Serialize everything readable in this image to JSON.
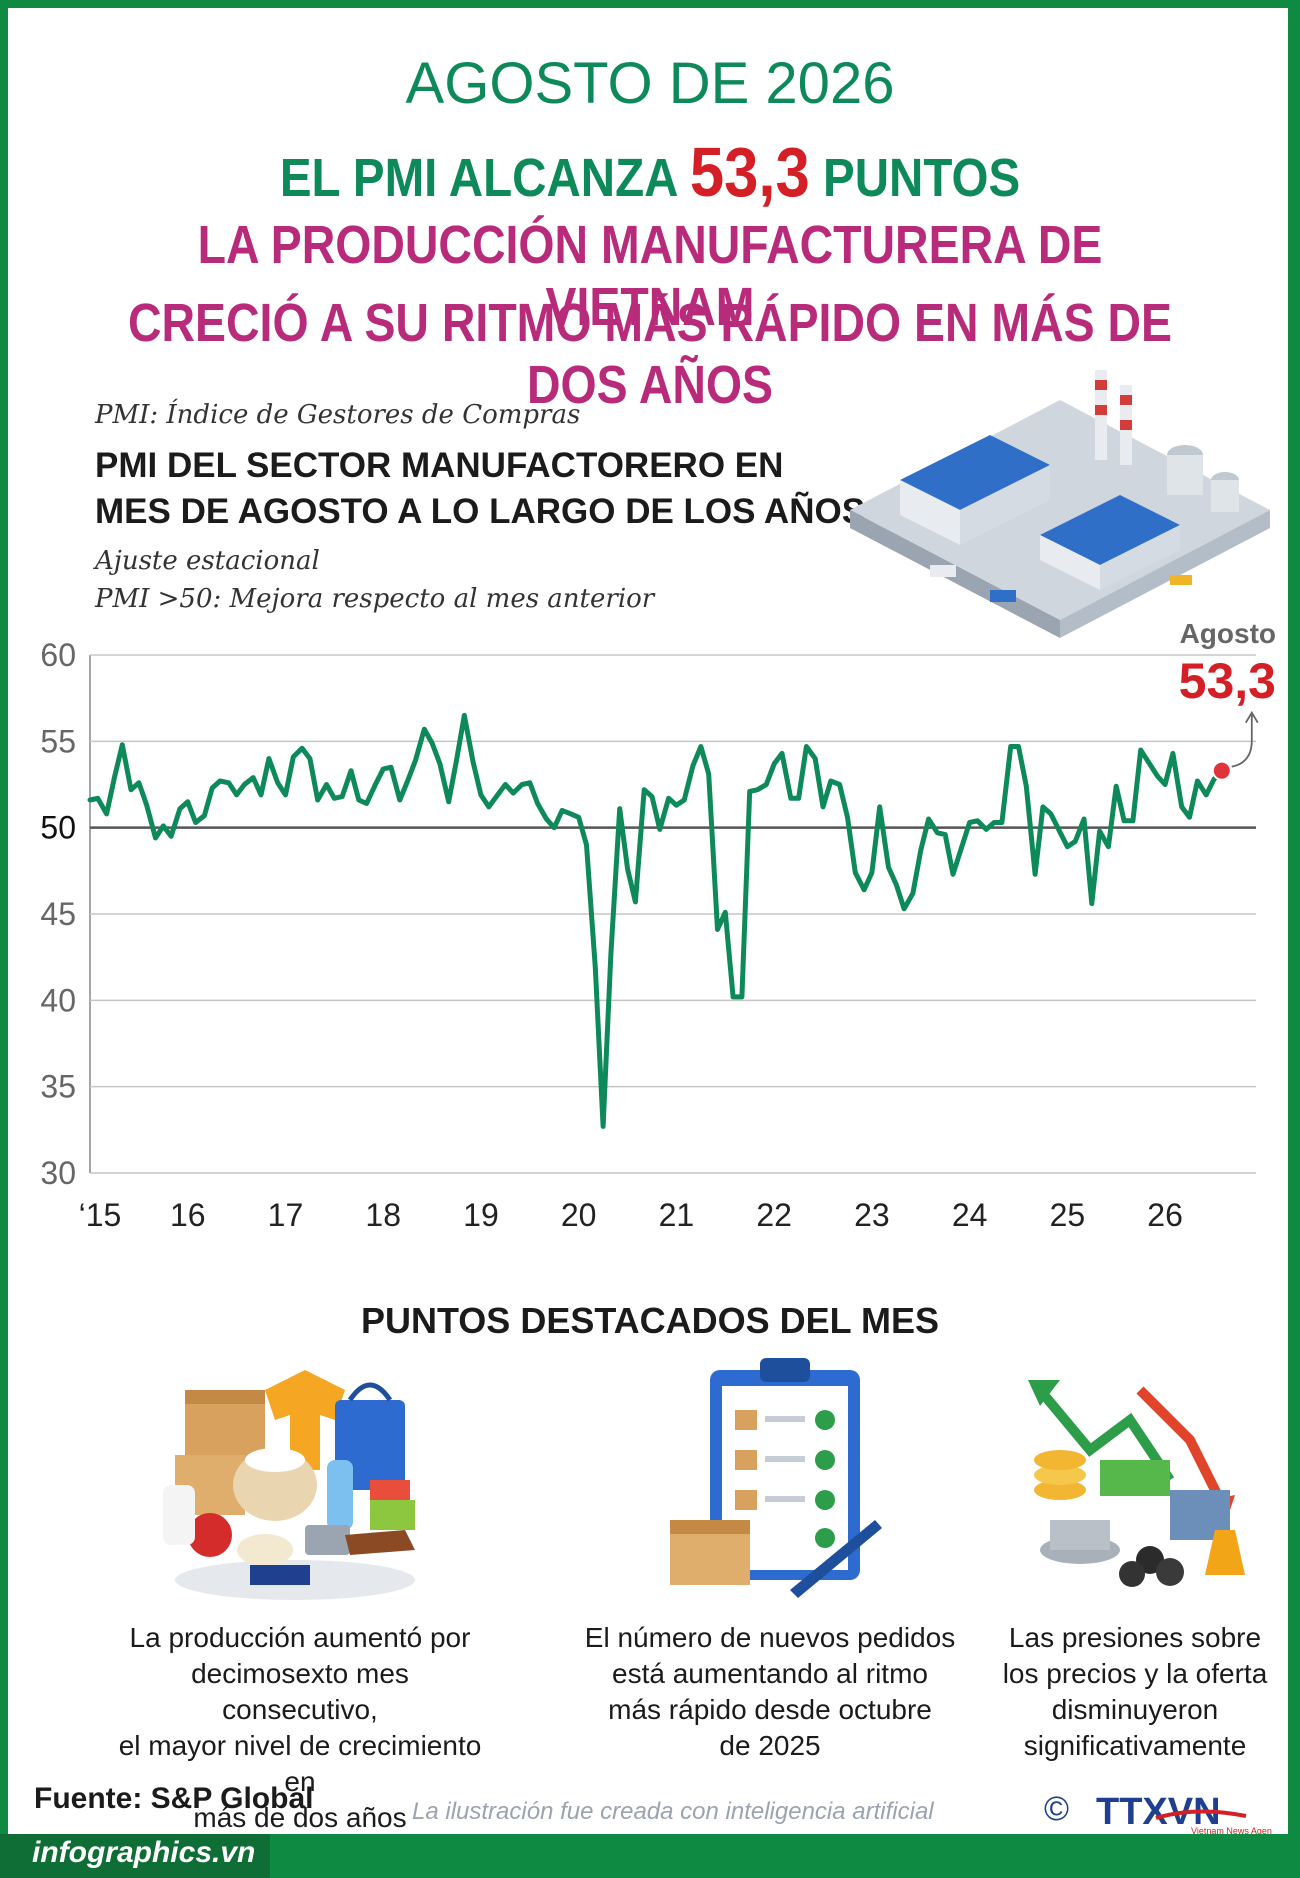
{
  "header": {
    "date_title": "AGOSTO DE 2026",
    "headline_pre": "EL PMI ALCANZA ",
    "headline_value": "53,3",
    "headline_post": " PUNTOS",
    "headline_line2": "LA PRODUCCIÓN MANUFACTURERA DE VIETNAM",
    "headline_line3": "CRECIÓ A SU RITMO MÁS RÁPIDO EN MÁS DE DOS AÑOS"
  },
  "notes": {
    "pmi_definition": "PMI: Índice de Gestores de Compras",
    "subtitle_line1": "PMI DEL SECTOR MANUFACTORERO EN",
    "subtitle_line2": "MES DE AGOSTO A LO LARGO DE LOS AÑOS",
    "seasonal": "Ajuste estacional",
    "improvement": "PMI >50: Mejora respecto al mes anterior"
  },
  "chart_data": {
    "type": "line",
    "y_ticks": [
      "60",
      "55",
      "50",
      "45",
      "40",
      "35",
      "30"
    ],
    "x_ticks": [
      "‘15",
      "16",
      "17",
      "18",
      "19",
      "20",
      "21",
      "22",
      "23",
      "24",
      "25",
      "26"
    ],
    "ylim": [
      30,
      60
    ],
    "grid": true,
    "reference_line": 50,
    "callout_label": "Agosto",
    "callout_value": "53,3",
    "series": [
      {
        "color": "#0e8a5a",
        "points": [
          [
            2015.0,
            51.6
          ],
          [
            2015.08,
            51.7
          ],
          [
            2015.17,
            50.8
          ],
          [
            2015.25,
            52.9
          ],
          [
            2015.33,
            54.8
          ],
          [
            2015.42,
            52.2
          ],
          [
            2015.5,
            52.6
          ],
          [
            2015.58,
            51.3
          ],
          [
            2015.67,
            49.4
          ],
          [
            2015.75,
            50.1
          ],
          [
            2015.83,
            49.5
          ],
          [
            2015.92,
            51.1
          ],
          [
            2016.0,
            51.5
          ],
          [
            2016.08,
            50.3
          ],
          [
            2016.17,
            50.7
          ],
          [
            2016.25,
            52.3
          ],
          [
            2016.33,
            52.7
          ],
          [
            2016.42,
            52.6
          ],
          [
            2016.5,
            51.9
          ],
          [
            2016.58,
            52.5
          ],
          [
            2016.67,
            52.9
          ],
          [
            2016.75,
            51.9
          ],
          [
            2016.83,
            54.0
          ],
          [
            2016.92,
            52.6
          ],
          [
            2017.0,
            51.9
          ],
          [
            2017.08,
            54.1
          ],
          [
            2017.17,
            54.6
          ],
          [
            2017.25,
            54.0
          ],
          [
            2017.33,
            51.6
          ],
          [
            2017.42,
            52.5
          ],
          [
            2017.5,
            51.7
          ],
          [
            2017.58,
            51.8
          ],
          [
            2017.67,
            53.3
          ],
          [
            2017.75,
            51.6
          ],
          [
            2017.83,
            51.4
          ],
          [
            2017.92,
            52.5
          ],
          [
            2018.0,
            53.4
          ],
          [
            2018.08,
            53.5
          ],
          [
            2018.17,
            51.6
          ],
          [
            2018.25,
            52.7
          ],
          [
            2018.33,
            53.9
          ],
          [
            2018.42,
            55.7
          ],
          [
            2018.5,
            54.9
          ],
          [
            2018.58,
            53.7
          ],
          [
            2018.67,
            51.5
          ],
          [
            2018.75,
            53.9
          ],
          [
            2018.83,
            56.5
          ],
          [
            2018.92,
            53.8
          ],
          [
            2019.0,
            51.9
          ],
          [
            2019.08,
            51.2
          ],
          [
            2019.17,
            51.9
          ],
          [
            2019.25,
            52.5
          ],
          [
            2019.33,
            52.0
          ],
          [
            2019.42,
            52.5
          ],
          [
            2019.5,
            52.6
          ],
          [
            2019.58,
            51.4
          ],
          [
            2019.67,
            50.5
          ],
          [
            2019.75,
            50.0
          ],
          [
            2019.83,
            51.0
          ],
          [
            2019.92,
            50.8
          ],
          [
            2020.0,
            50.6
          ],
          [
            2020.08,
            49.0
          ],
          [
            2020.17,
            41.9
          ],
          [
            2020.25,
            32.7
          ],
          [
            2020.33,
            42.7
          ],
          [
            2020.42,
            51.1
          ],
          [
            2020.5,
            47.6
          ],
          [
            2020.58,
            45.7
          ],
          [
            2020.67,
            52.2
          ],
          [
            2020.75,
            51.8
          ],
          [
            2020.83,
            49.9
          ],
          [
            2020.92,
            51.7
          ],
          [
            2021.0,
            51.3
          ],
          [
            2021.08,
            51.6
          ],
          [
            2021.17,
            53.6
          ],
          [
            2021.25,
            54.7
          ],
          [
            2021.33,
            53.1
          ],
          [
            2021.42,
            44.1
          ],
          [
            2021.5,
            45.1
          ],
          [
            2021.58,
            40.2
          ],
          [
            2021.67,
            40.2
          ],
          [
            2021.75,
            52.1
          ],
          [
            2021.83,
            52.2
          ],
          [
            2021.92,
            52.5
          ],
          [
            2022.0,
            53.7
          ],
          [
            2022.08,
            54.3
          ],
          [
            2022.17,
            51.7
          ],
          [
            2022.25,
            51.7
          ],
          [
            2022.33,
            54.7
          ],
          [
            2022.42,
            54.0
          ],
          [
            2022.5,
            51.2
          ],
          [
            2022.58,
            52.7
          ],
          [
            2022.67,
            52.5
          ],
          [
            2022.75,
            50.6
          ],
          [
            2022.83,
            47.4
          ],
          [
            2022.92,
            46.4
          ],
          [
            2023.0,
            47.4
          ],
          [
            2023.08,
            51.2
          ],
          [
            2023.17,
            47.7
          ],
          [
            2023.25,
            46.7
          ],
          [
            2023.33,
            45.3
          ],
          [
            2023.42,
            46.2
          ],
          [
            2023.5,
            48.7
          ],
          [
            2023.58,
            50.5
          ],
          [
            2023.67,
            49.7
          ],
          [
            2023.75,
            49.6
          ],
          [
            2023.83,
            47.3
          ],
          [
            2023.92,
            48.9
          ],
          [
            2024.0,
            50.3
          ],
          [
            2024.08,
            50.4
          ],
          [
            2024.17,
            49.9
          ],
          [
            2024.25,
            50.3
          ],
          [
            2024.33,
            50.3
          ],
          [
            2024.42,
            54.7
          ],
          [
            2024.5,
            54.7
          ],
          [
            2024.58,
            52.4
          ],
          [
            2024.67,
            47.3
          ],
          [
            2024.75,
            51.2
          ],
          [
            2024.83,
            50.8
          ],
          [
            2024.92,
            49.8
          ],
          [
            2025.0,
            48.9
          ],
          [
            2025.08,
            49.2
          ],
          [
            2025.17,
            50.5
          ],
          [
            2025.25,
            45.6
          ],
          [
            2025.33,
            49.8
          ],
          [
            2025.42,
            48.9
          ],
          [
            2025.5,
            52.4
          ],
          [
            2025.58,
            50.4
          ],
          [
            2025.67,
            50.4
          ],
          [
            2025.75,
            54.5
          ],
          [
            2025.83,
            53.8
          ],
          [
            2025.92,
            53.0
          ],
          [
            2026.0,
            52.5
          ],
          [
            2026.08,
            54.3
          ],
          [
            2026.17,
            51.2
          ],
          [
            2026.25,
            50.6
          ],
          [
            2026.33,
            52.7
          ],
          [
            2026.42,
            51.9
          ],
          [
            2026.5,
            52.8
          ],
          [
            2026.58,
            53.3
          ]
        ]
      }
    ]
  },
  "highlights": {
    "title": "PUNTOS DESTACADOS DEL MES",
    "items": [
      {
        "icon": "goods-icon",
        "text_1": "La producción aumentó por",
        "text_2": "decimosexto mes consecutivo,",
        "text_3": "el mayor nivel de crecimiento en",
        "text_4": "más de dos años"
      },
      {
        "icon": "clipboard-orders-icon",
        "text_1": "El número de nuevos pedidos",
        "text_2": "está aumentando al ritmo",
        "text_3": "más rápido desde octubre",
        "text_4": "de 2025"
      },
      {
        "icon": "commodities-prices-icon",
        "text_1": "Las presiones sobre",
        "text_2": "los precios y la oferta",
        "text_3": "disminuyeron",
        "text_4": "significativamente"
      }
    ]
  },
  "footer": {
    "source": "Fuente: S&P Global",
    "ai_note": "La ilustración fue creada con inteligencia artificial",
    "copyright": "©",
    "logo_text": "TTXVN",
    "logo_sub": "Vietnam News Agency",
    "site": "infographics.vn"
  },
  "colors": {
    "green": "#0e8a5a",
    "magenta": "#b82a7a",
    "red": "#d41f26",
    "frame": "#0f8a43"
  }
}
